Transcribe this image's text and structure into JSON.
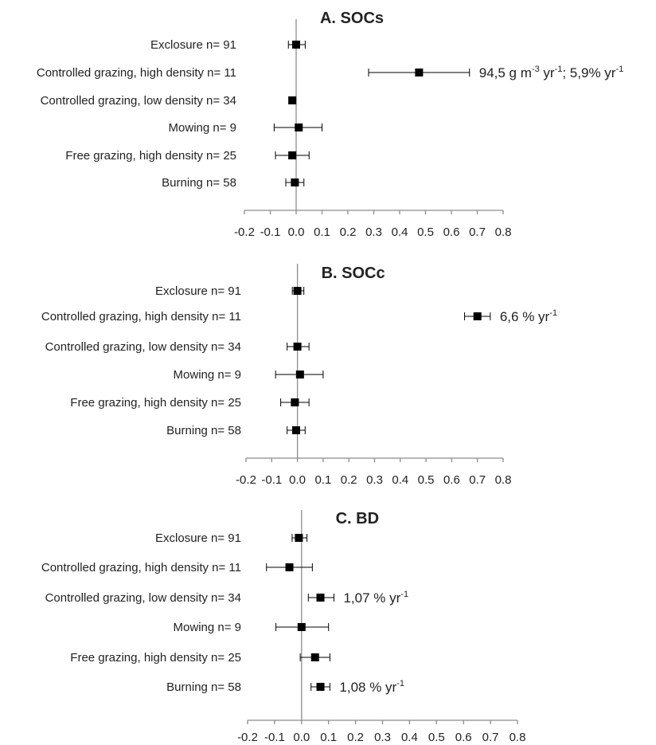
{
  "chart_data": [
    {
      "type": "scatter",
      "title": "A. SOCs",
      "xlim": [
        -0.2,
        0.8
      ],
      "x_ticks": [
        "-0.2",
        "-0.1",
        "0.0",
        "0.1",
        "0.2",
        "0.3",
        "0.4",
        "0.5",
        "0.6",
        "0.7",
        "0.8"
      ],
      "grid": false,
      "legend": "none",
      "categories": [
        "Exclosure n= 91",
        "Controlled grazing, high density n= 11",
        "Controlled grazing, low density n= 34",
        "Mowing n= 9",
        "Free grazing, high density n= 25",
        "Burning n= 58"
      ],
      "values": [
        0.0,
        0.475,
        -0.015,
        0.01,
        -0.015,
        -0.005
      ],
      "ci_low": [
        -0.03,
        0.28,
        -0.025,
        -0.085,
        -0.08,
        -0.04
      ],
      "ci_high": [
        0.035,
        0.67,
        -0.005,
        0.1,
        0.05,
        0.03
      ],
      "annotations": [
        {
          "category_index": 1,
          "text": "94,5 g m",
          "sup1": "-3",
          "mid": " yr",
          "sup2": "-1",
          "tail": "; 5,9% yr",
          "sup3": "-1"
        }
      ]
    },
    {
      "type": "scatter",
      "title": "B. SOCc",
      "xlim": [
        -0.2,
        0.8
      ],
      "x_ticks": [
        "-0.2",
        "-0.1",
        "0.0",
        "0.1",
        "0.2",
        "0.3",
        "0.4",
        "0.5",
        "0.6",
        "0.7",
        "0.8"
      ],
      "grid": false,
      "legend": "none",
      "categories": [
        "Exclosure n= 91",
        "Controlled grazing, high density n= 11",
        "Controlled grazing, low density n= 34",
        "Mowing n= 9",
        "Free grazing, high density n= 25",
        "Burning n= 58"
      ],
      "values": [
        0.0,
        0.7,
        0.0,
        0.01,
        -0.01,
        -0.005
      ],
      "ci_low": [
        -0.02,
        0.65,
        -0.04,
        -0.085,
        -0.065,
        -0.04
      ],
      "ci_high": [
        0.025,
        0.75,
        0.045,
        0.1,
        0.045,
        0.03
      ],
      "annotations": [
        {
          "category_index": 1,
          "text": "6,6 % yr",
          "sup1": "-1",
          "mid": "",
          "sup2": "",
          "tail": "",
          "sup3": ""
        }
      ]
    },
    {
      "type": "scatter",
      "title": "C. BD",
      "xlim": [
        -0.2,
        0.8
      ],
      "x_ticks": [
        "-0.2",
        "-0.1",
        "0.0",
        "0.1",
        "0.2",
        "0.3",
        "0.4",
        "0.5",
        "0.6",
        "0.7",
        "0.8"
      ],
      "grid": false,
      "legend": "none",
      "categories": [
        "Exclosure n= 91",
        "Controlled grazing, high density n= 11",
        "Controlled grazing, low density n= 34",
        "Mowing n= 9",
        "Free grazing, high density n= 25",
        "Burning n= 58"
      ],
      "values": [
        -0.01,
        -0.045,
        0.07,
        0.0,
        0.05,
        0.07
      ],
      "ci_low": [
        -0.035,
        -0.13,
        0.025,
        -0.095,
        -0.005,
        0.035
      ],
      "ci_high": [
        0.02,
        0.04,
        0.12,
        0.1,
        0.105,
        0.105
      ],
      "annotations": [
        {
          "category_index": 2,
          "text": "1,07 % yr",
          "sup1": "-1",
          "mid": "",
          "sup2": "",
          "tail": "",
          "sup3": ""
        },
        {
          "category_index": 5,
          "text": "1,08 % yr",
          "sup1": "-1",
          "mid": "",
          "sup2": "",
          "tail": "",
          "sup3": ""
        }
      ]
    }
  ]
}
